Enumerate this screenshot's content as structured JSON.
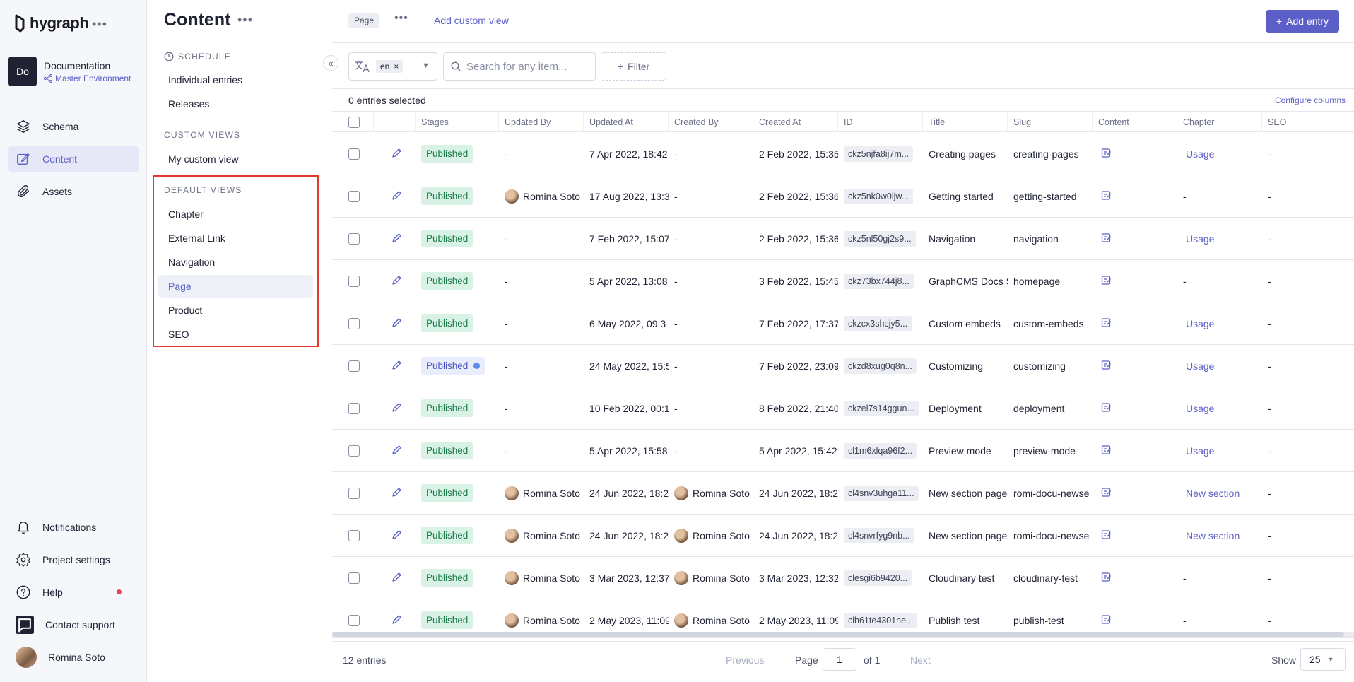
{
  "brand": {
    "name": "hygraph"
  },
  "project": {
    "initials": "Do",
    "name": "Documentation",
    "environment": "Master Environment"
  },
  "leftnav": {
    "items": [
      {
        "label": "Schema",
        "icon": "layers-icon",
        "active": false
      },
      {
        "label": "Content",
        "icon": "edit-square-icon",
        "active": true
      },
      {
        "label": "Assets",
        "icon": "paperclip-icon",
        "active": false
      }
    ],
    "bottom": [
      {
        "label": "Notifications",
        "icon": "bell-icon"
      },
      {
        "label": "Project settings",
        "icon": "gear-icon"
      },
      {
        "label": "Help",
        "icon": "question-icon"
      },
      {
        "label": "Contact support",
        "icon": "chat-icon"
      }
    ],
    "user": {
      "name": "Romina Soto"
    }
  },
  "contentnav": {
    "title": "Content",
    "schedule": {
      "heading": "SCHEDULE",
      "items": [
        "Individual entries",
        "Releases"
      ]
    },
    "custom_views": {
      "heading": "CUSTOM VIEWS",
      "items": [
        "My custom view"
      ]
    },
    "default_views": {
      "heading": "DEFAULT VIEWS",
      "items": [
        "Chapter",
        "External Link",
        "Navigation",
        "Page",
        "Product",
        "SEO"
      ],
      "active": "Page"
    }
  },
  "topbar": {
    "model": "Page",
    "custom_view_link": "Add custom view",
    "add_entry": "Add entry"
  },
  "filters": {
    "locale": "en",
    "search_placeholder": "Search for any item...",
    "filter_label": "Filter"
  },
  "selection": {
    "count_text": "0 entries selected",
    "configure": "Configure columns"
  },
  "table": {
    "columns": [
      "Stages",
      "Updated By",
      "Updated At",
      "Created By",
      "Created At",
      "ID",
      "Title",
      "Slug",
      "Content",
      "Chapter",
      "SEO"
    ],
    "rows": [
      {
        "stage": "Published",
        "stage_variant": "green",
        "updated_by": "-",
        "updated_at": "7 Apr 2022, 18:42",
        "created_by": "-",
        "created_at": "2 Feb 2022, 15:35",
        "id": "ckz5njfa8ij7m...",
        "title": "Creating pages",
        "slug": "creating-pages",
        "chapter": "Usage",
        "seo": "-"
      },
      {
        "stage": "Published",
        "stage_variant": "green",
        "updated_by": "Romina Soto",
        "updated_at": "17 Aug 2022, 13:3",
        "created_by": "-",
        "created_at": "2 Feb 2022, 15:36",
        "id": "ckz5nk0w0ijw...",
        "title": "Getting started",
        "slug": "getting-started",
        "chapter": "-",
        "seo": "-"
      },
      {
        "stage": "Published",
        "stage_variant": "green",
        "updated_by": "-",
        "updated_at": "7 Feb 2022, 15:07",
        "created_by": "-",
        "created_at": "2 Feb 2022, 15:36",
        "id": "ckz5nl50gj2s9...",
        "title": "Navigation",
        "slug": "navigation",
        "chapter": "Usage",
        "seo": "-"
      },
      {
        "stage": "Published",
        "stage_variant": "green",
        "updated_by": "-",
        "updated_at": "5 Apr 2022, 13:08",
        "created_by": "-",
        "created_at": "3 Feb 2022, 15:45",
        "id": "ckz73bx744j8...",
        "title": "GraphCMS Docs S",
        "slug": "homepage",
        "chapter": "-",
        "seo": "-"
      },
      {
        "stage": "Published",
        "stage_variant": "green",
        "updated_by": "-",
        "updated_at": "6 May 2022, 09:3",
        "created_by": "-",
        "created_at": "7 Feb 2022, 17:37",
        "id": "ckzcx3shcjy5...",
        "title": "Custom embeds",
        "slug": "custom-embeds",
        "chapter": "Usage",
        "seo": "-"
      },
      {
        "stage": "Published",
        "stage_variant": "blue",
        "updated_by": "-",
        "updated_at": "24 May 2022, 15:5",
        "created_by": "-",
        "created_at": "7 Feb 2022, 23:09",
        "id": "ckzd8xug0q8n...",
        "title": "Customizing",
        "slug": "customizing",
        "chapter": "Usage",
        "seo": "-"
      },
      {
        "stage": "Published",
        "stage_variant": "green",
        "updated_by": "-",
        "updated_at": "10 Feb 2022, 00:1",
        "created_by": "-",
        "created_at": "8 Feb 2022, 21:40",
        "id": "ckzel7s14ggun...",
        "title": "Deployment",
        "slug": "deployment",
        "chapter": "Usage",
        "seo": "-"
      },
      {
        "stage": "Published",
        "stage_variant": "green",
        "updated_by": "-",
        "updated_at": "5 Apr 2022, 15:58",
        "created_by": "-",
        "created_at": "5 Apr 2022, 15:42",
        "id": "cl1m6xlqa96f2...",
        "title": "Preview mode",
        "slug": "preview-mode",
        "chapter": "Usage",
        "seo": "-"
      },
      {
        "stage": "Published",
        "stage_variant": "green",
        "updated_by": "Romina Soto",
        "updated_at": "24 Jun 2022, 18:2",
        "created_by": "Romina Soto",
        "created_at": "24 Jun 2022, 18:2",
        "id": "cl4snv3uhga11...",
        "title": "New section page",
        "slug": "romi-docu-newse",
        "chapter": "New section",
        "seo": "-"
      },
      {
        "stage": "Published",
        "stage_variant": "green",
        "updated_by": "Romina Soto",
        "updated_at": "24 Jun 2022, 18:2",
        "created_by": "Romina Soto",
        "created_at": "24 Jun 2022, 18:2",
        "id": "cl4snvrfyg9nb...",
        "title": "New section page",
        "slug": "romi-docu-newse",
        "chapter": "New section",
        "seo": "-"
      },
      {
        "stage": "Published",
        "stage_variant": "green",
        "updated_by": "Romina Soto",
        "updated_at": "3 Mar 2023, 12:37",
        "created_by": "Romina Soto",
        "created_at": "3 Mar 2023, 12:32",
        "id": "clesgi6b9420...",
        "title": "Cloudinary test",
        "slug": "cloudinary-test",
        "chapter": "-",
        "seo": "-"
      },
      {
        "stage": "Published",
        "stage_variant": "green",
        "updated_by": "Romina Soto",
        "updated_at": "2 May 2023, 11:09",
        "created_by": "Romina Soto",
        "created_at": "2 May 2023, 11:09",
        "id": "clh61te4301ne...",
        "title": "Publish test",
        "slug": "publish-test",
        "chapter": "-",
        "seo": "-"
      }
    ]
  },
  "footer": {
    "entries": "12 entries",
    "previous": "Previous",
    "page_label": "Page",
    "page_value": "1",
    "of_label": "of 1",
    "next": "Next",
    "show_label": "Show",
    "show_value": "25"
  },
  "colors": {
    "accent": "#5b5fc7",
    "published_bg": "#d9f2e6",
    "published_text": "#1d7a4b",
    "highlight": "#e53b2c"
  }
}
